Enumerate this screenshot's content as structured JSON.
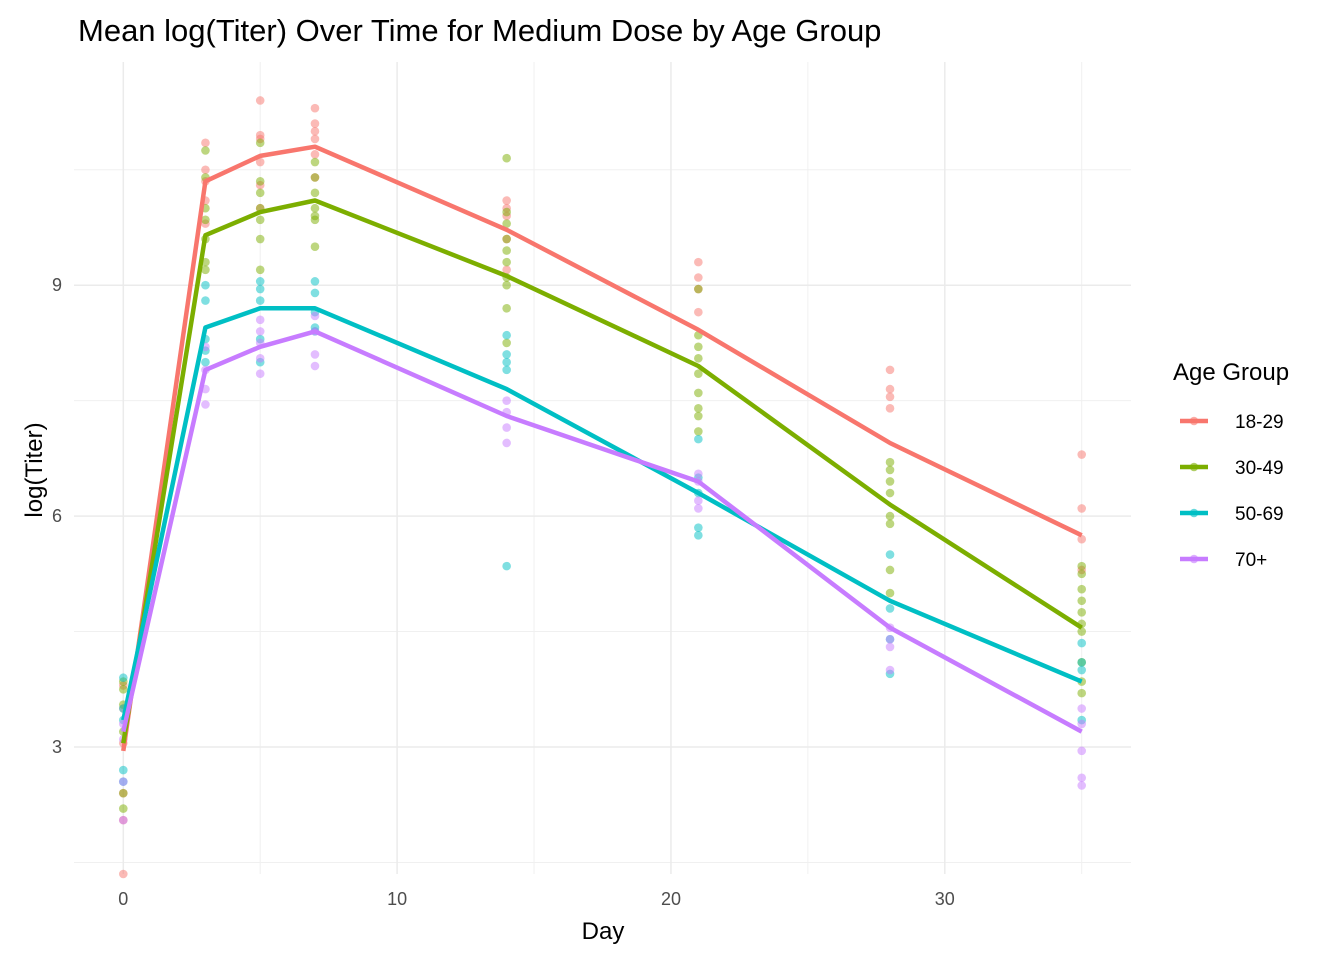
{
  "chart_data": {
    "type": "line",
    "title": "Mean log(Titer) Over Time for Medium Dose by Age Group",
    "xlabel": "Day",
    "ylabel": "log(Titer)",
    "xlim": [
      -1.8,
      36.8
    ],
    "ylim": [
      1.35,
      11.9
    ],
    "x_ticks": [
      0,
      10,
      20,
      30
    ],
    "y_ticks": [
      3,
      6,
      9
    ],
    "grid": true,
    "legend": {
      "title": "Age Group",
      "position": "right"
    },
    "x": [
      0,
      3,
      5,
      7,
      14,
      21,
      28,
      35
    ],
    "series": [
      {
        "name": "18-29",
        "color": "#F8766D",
        "values": [
          2.95,
          10.35,
          10.68,
          10.8,
          9.72,
          8.42,
          6.95,
          5.75
        ],
        "points": [
          [
            0,
            1.35
          ],
          [
            0,
            2.05
          ],
          [
            0,
            2.4
          ],
          [
            0,
            3.05
          ],
          [
            0,
            3.5
          ],
          [
            0,
            3.8
          ],
          [
            3,
            10.85
          ],
          [
            3,
            10.5
          ],
          [
            3,
            10.35
          ],
          [
            3,
            10.1
          ],
          [
            3,
            9.8
          ],
          [
            5,
            11.4
          ],
          [
            5,
            10.95
          ],
          [
            5,
            10.9
          ],
          [
            5,
            10.6
          ],
          [
            5,
            10.3
          ],
          [
            5,
            10.0
          ],
          [
            7,
            11.3
          ],
          [
            7,
            11.1
          ],
          [
            7,
            11.0
          ],
          [
            7,
            10.9
          ],
          [
            7,
            10.7
          ],
          [
            7,
            10.4
          ],
          [
            14,
            10.1
          ],
          [
            14,
            10.0
          ],
          [
            14,
            9.9
          ],
          [
            14,
            9.6
          ],
          [
            14,
            9.2
          ],
          [
            21,
            9.3
          ],
          [
            21,
            9.1
          ],
          [
            21,
            8.95
          ],
          [
            21,
            8.65
          ],
          [
            28,
            7.9
          ],
          [
            28,
            7.65
          ],
          [
            28,
            7.55
          ],
          [
            28,
            7.4
          ],
          [
            35,
            6.8
          ],
          [
            35,
            6.1
          ],
          [
            35,
            5.7
          ],
          [
            35,
            5.3
          ]
        ]
      },
      {
        "name": "30-49",
        "color": "#7CAE00",
        "values": [
          3.05,
          9.65,
          9.95,
          10.1,
          9.12,
          7.95,
          6.15,
          4.55
        ],
        "points": [
          [
            0,
            2.2
          ],
          [
            0,
            2.4
          ],
          [
            0,
            3.2
          ],
          [
            0,
            3.55
          ],
          [
            0,
            3.75
          ],
          [
            0,
            3.85
          ],
          [
            3,
            10.75
          ],
          [
            3,
            10.4
          ],
          [
            3,
            10.0
          ],
          [
            3,
            9.85
          ],
          [
            3,
            9.6
          ],
          [
            3,
            9.3
          ],
          [
            3,
            9.2
          ],
          [
            5,
            10.85
          ],
          [
            5,
            10.35
          ],
          [
            5,
            10.2
          ],
          [
            5,
            10.0
          ],
          [
            5,
            9.85
          ],
          [
            5,
            9.6
          ],
          [
            5,
            9.2
          ],
          [
            7,
            10.6
          ],
          [
            7,
            10.4
          ],
          [
            7,
            10.2
          ],
          [
            7,
            10.0
          ],
          [
            7,
            9.9
          ],
          [
            7,
            9.85
          ],
          [
            7,
            9.5
          ],
          [
            14,
            10.65
          ],
          [
            14,
            9.95
          ],
          [
            14,
            9.8
          ],
          [
            14,
            9.6
          ],
          [
            14,
            9.45
          ],
          [
            14,
            9.3
          ],
          [
            14,
            9.1
          ],
          [
            14,
            9.0
          ],
          [
            14,
            8.7
          ],
          [
            14,
            8.25
          ],
          [
            21,
            8.95
          ],
          [
            21,
            8.35
          ],
          [
            21,
            8.2
          ],
          [
            21,
            8.05
          ],
          [
            21,
            7.85
          ],
          [
            21,
            7.6
          ],
          [
            21,
            7.4
          ],
          [
            21,
            7.3
          ],
          [
            21,
            7.1
          ],
          [
            28,
            6.7
          ],
          [
            28,
            6.6
          ],
          [
            28,
            6.45
          ],
          [
            28,
            6.3
          ],
          [
            28,
            6.0
          ],
          [
            28,
            5.9
          ],
          [
            28,
            5.3
          ],
          [
            28,
            5.0
          ],
          [
            35,
            5.35
          ],
          [
            35,
            5.25
          ],
          [
            35,
            5.05
          ],
          [
            35,
            4.9
          ],
          [
            35,
            4.75
          ],
          [
            35,
            4.6
          ],
          [
            35,
            4.5
          ],
          [
            35,
            4.1
          ],
          [
            35,
            3.85
          ],
          [
            35,
            3.7
          ]
        ]
      },
      {
        "name": "50-69",
        "color": "#00BFC4",
        "values": [
          3.35,
          8.45,
          8.7,
          8.7,
          7.65,
          6.3,
          4.9,
          3.85
        ],
        "points": [
          [
            0,
            2.55
          ],
          [
            0,
            2.7
          ],
          [
            0,
            3.35
          ],
          [
            0,
            3.5
          ],
          [
            0,
            3.9
          ],
          [
            3,
            9.0
          ],
          [
            3,
            8.8
          ],
          [
            3,
            8.3
          ],
          [
            3,
            8.15
          ],
          [
            3,
            8.0
          ],
          [
            5,
            9.05
          ],
          [
            5,
            8.95
          ],
          [
            5,
            8.8
          ],
          [
            5,
            8.3
          ],
          [
            5,
            8.0
          ],
          [
            7,
            9.05
          ],
          [
            7,
            8.9
          ],
          [
            7,
            8.65
          ],
          [
            7,
            8.45
          ],
          [
            7,
            8.4
          ],
          [
            14,
            8.35
          ],
          [
            14,
            8.1
          ],
          [
            14,
            8.0
          ],
          [
            14,
            7.9
          ],
          [
            14,
            5.35
          ],
          [
            21,
            7.0
          ],
          [
            21,
            6.5
          ],
          [
            21,
            6.3
          ],
          [
            21,
            5.85
          ],
          [
            21,
            5.75
          ],
          [
            28,
            5.5
          ],
          [
            28,
            4.8
          ],
          [
            28,
            4.4
          ],
          [
            28,
            3.95
          ],
          [
            35,
            4.35
          ],
          [
            35,
            4.1
          ],
          [
            35,
            4.0
          ],
          [
            35,
            3.35
          ]
        ]
      },
      {
        "name": "70+",
        "color": "#C77CFF",
        "values": [
          3.2,
          7.9,
          8.2,
          8.4,
          7.3,
          6.45,
          4.55,
          3.2
        ],
        "points": [
          [
            0,
            2.05
          ],
          [
            0,
            2.55
          ],
          [
            0,
            3.1
          ],
          [
            0,
            3.3
          ],
          [
            3,
            8.2
          ],
          [
            3,
            7.9
          ],
          [
            3,
            7.65
          ],
          [
            3,
            7.45
          ],
          [
            5,
            8.55
          ],
          [
            5,
            8.4
          ],
          [
            5,
            8.25
          ],
          [
            5,
            8.05
          ],
          [
            5,
            7.85
          ],
          [
            7,
            8.6
          ],
          [
            7,
            8.4
          ],
          [
            7,
            8.1
          ],
          [
            7,
            7.95
          ],
          [
            14,
            7.5
          ],
          [
            14,
            7.35
          ],
          [
            14,
            7.15
          ],
          [
            14,
            6.95
          ],
          [
            21,
            6.55
          ],
          [
            21,
            6.45
          ],
          [
            21,
            6.2
          ],
          [
            21,
            6.1
          ],
          [
            28,
            4.55
          ],
          [
            28,
            4.4
          ],
          [
            28,
            4.3
          ],
          [
            28,
            4.0
          ],
          [
            35,
            3.5
          ],
          [
            35,
            3.3
          ],
          [
            35,
            2.95
          ],
          [
            35,
            2.6
          ],
          [
            35,
            2.5
          ]
        ]
      }
    ]
  }
}
